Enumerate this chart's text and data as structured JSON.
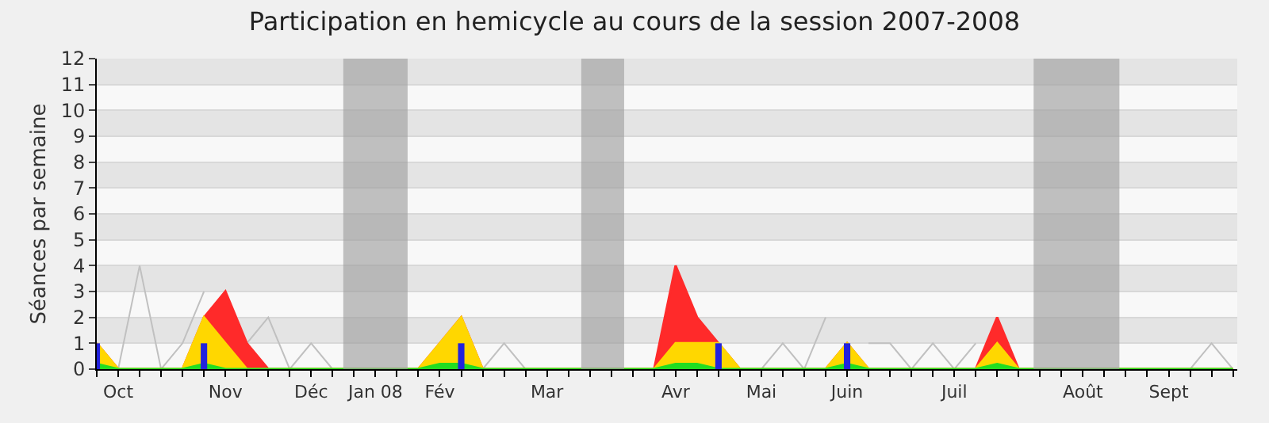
{
  "chart_data": {
    "type": "area",
    "title": "Participation en hemicycle au cours de la session 2007-2008",
    "ylabel": "Séances par semaine",
    "categories": [
      null,
      "Oct",
      null,
      null,
      null,
      null,
      "Nov",
      null,
      null,
      null,
      "Déc",
      null,
      null,
      "Jan 08",
      null,
      null,
      "Fév",
      null,
      null,
      null,
      null,
      "Mar",
      null,
      null,
      null,
      null,
      null,
      "Avr",
      null,
      null,
      null,
      "Mai",
      null,
      null,
      null,
      "Juin",
      null,
      null,
      null,
      null,
      "Juil",
      null,
      null,
      null,
      null,
      null,
      "Août",
      null,
      null,
      null,
      "Sept",
      null,
      null,
      null
    ],
    "ylim": [
      0,
      12
    ],
    "yticks": [
      0,
      1,
      2,
      3,
      4,
      5,
      6,
      7,
      8,
      9,
      10,
      11,
      12
    ],
    "grid": "y",
    "legend": false,
    "series": [
      {
        "type": "line",
        "color": "#c0c0c0",
        "values": [
          1,
          0,
          4,
          0,
          1,
          3,
          null,
          1,
          2,
          0,
          1,
          0,
          0,
          0,
          0,
          null,
          null,
          null,
          0,
          1,
          0,
          0,
          0,
          0,
          0,
          0,
          null,
          null,
          null,
          null,
          0,
          0,
          1,
          0,
          2,
          null,
          1,
          1,
          0,
          1,
          0,
          1,
          null,
          0,
          0,
          0,
          0,
          0,
          0,
          0,
          0,
          0,
          1,
          0
        ]
      },
      {
        "color": "#ff2a2a",
        "values": [
          1,
          0,
          0,
          0,
          0,
          2,
          3,
          1,
          0,
          0,
          0,
          0,
          0,
          0,
          0,
          0,
          1,
          2,
          0,
          0,
          0,
          0,
          0,
          0,
          0,
          0,
          0,
          4,
          2,
          1,
          0,
          0,
          0,
          0,
          0,
          1,
          0,
          0,
          0,
          0,
          0,
          0,
          2,
          0,
          0,
          0,
          0,
          0,
          0,
          0,
          0,
          0,
          0,
          0
        ]
      },
      {
        "color": "#ffd700",
        "values": [
          1,
          0,
          0,
          0,
          0,
          2,
          1,
          0,
          0,
          0,
          0,
          0,
          0,
          0,
          0,
          0,
          1,
          2,
          0,
          0,
          0,
          0,
          0,
          0,
          0,
          0,
          0,
          1,
          1,
          1,
          0,
          0,
          0,
          0,
          0,
          1,
          0,
          0,
          0,
          0,
          0,
          0,
          1,
          0,
          0,
          0,
          0,
          0,
          0,
          0,
          0,
          0,
          0,
          0
        ]
      },
      {
        "color": "#22dd22",
        "values": [
          0.2,
          0,
          0,
          0,
          0,
          0.2,
          0,
          0,
          0,
          0,
          0,
          0,
          0,
          0,
          0,
          0,
          0.2,
          0.2,
          0,
          0,
          0,
          0,
          0,
          0,
          0,
          0,
          0,
          0.2,
          0.2,
          0,
          0,
          0,
          0,
          0,
          0,
          0.2,
          0,
          0,
          0,
          0,
          0,
          0,
          0.2,
          0,
          0,
          0,
          0,
          0,
          0,
          0,
          0,
          0,
          0,
          0
        ]
      },
      {
        "type": "bar",
        "color": "#2222dd",
        "values": [
          1,
          null,
          null,
          null,
          null,
          1,
          null,
          null,
          null,
          null,
          null,
          null,
          null,
          null,
          null,
          null,
          null,
          1,
          null,
          null,
          null,
          null,
          null,
          null,
          null,
          null,
          null,
          null,
          null,
          1,
          null,
          null,
          null,
          null,
          null,
          1,
          null,
          null,
          null,
          null,
          null,
          null,
          null,
          null,
          null,
          null,
          null,
          null,
          null,
          null,
          null,
          null,
          null,
          null
        ]
      }
    ]
  }
}
